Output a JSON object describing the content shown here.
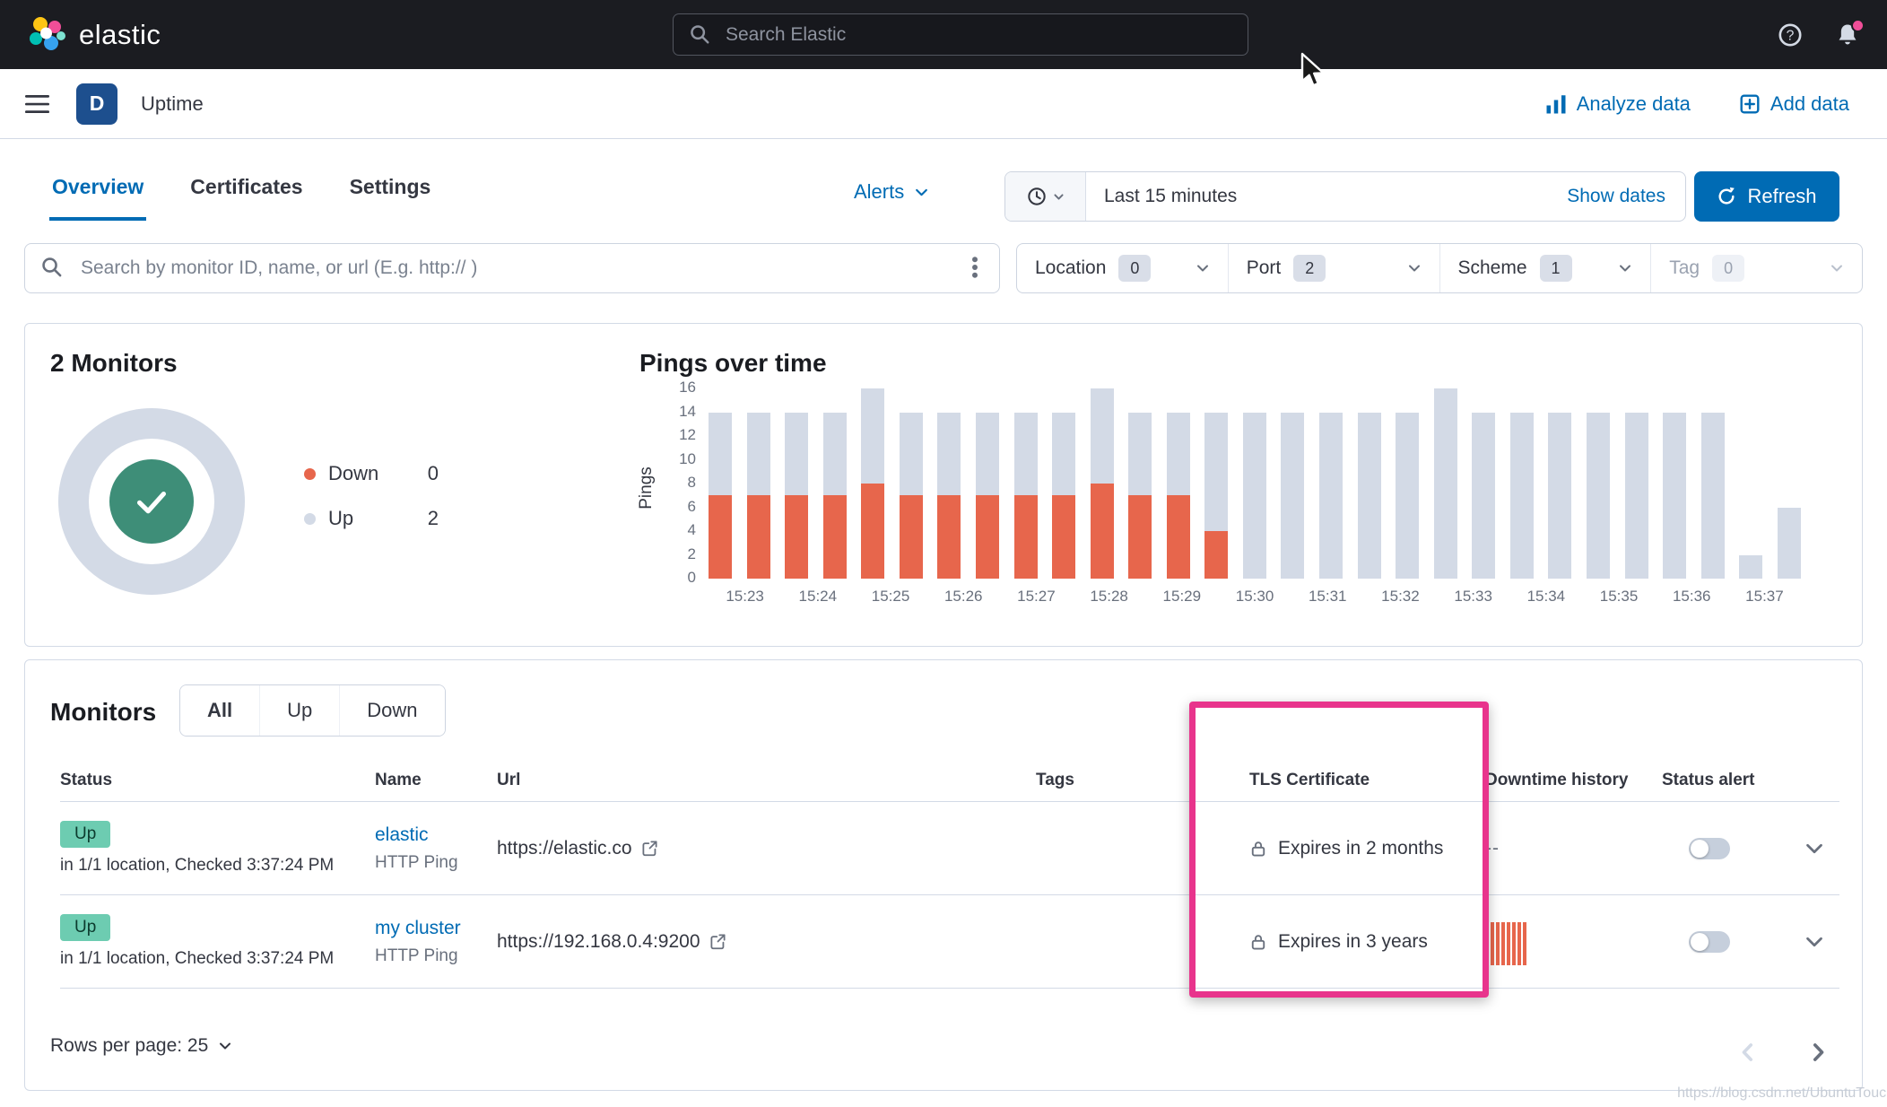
{
  "colors": {
    "accent_blue": "#006bb4",
    "header_bg": "#1b1c21",
    "border_gray": "#d3dae6",
    "text": "#343741",
    "text_subdued": "#69707d",
    "success_badge_bg": "#6dccb1",
    "down_orange": "#e7664c",
    "up_gray": "#d3dae6",
    "donut_check_green": "#3e8e78",
    "annotation_pink": "#e8348c",
    "notification_pink": "#f04e98",
    "space_badge_bg": "#1d4f8e"
  },
  "topbar": {
    "brand": "elastic",
    "search_placeholder": "Search Elastic"
  },
  "header": {
    "space_badge": "D",
    "breadcrumb": "Uptime",
    "analyze_data_label": "Analyze data",
    "add_data_label": "Add data"
  },
  "tabs": [
    {
      "label": "Overview",
      "active": true
    },
    {
      "label": "Certificates",
      "active": false
    },
    {
      "label": "Settings",
      "active": false
    }
  ],
  "alerts_label": "Alerts",
  "timepicker": {
    "range_label": "Last 15 minutes",
    "show_dates_label": "Show dates",
    "refresh_label": "Refresh"
  },
  "filter_bar": {
    "search_placeholder": "Search by monitor ID, name, or url (E.g. http:// )",
    "facets": [
      {
        "label": "Location",
        "count": "0",
        "disabled": false
      },
      {
        "label": "Port",
        "count": "2",
        "disabled": false
      },
      {
        "label": "Scheme",
        "count": "1",
        "disabled": false
      },
      {
        "label": "Tag",
        "count": "0",
        "disabled": true
      }
    ]
  },
  "snapshot": {
    "title": "2 Monitors",
    "legend": [
      {
        "label": "Down",
        "value": "0",
        "color": "#e7664c"
      },
      {
        "label": "Up",
        "value": "2",
        "color": "#d3dae6"
      }
    ]
  },
  "chart_data": {
    "type": "bar",
    "stacked": true,
    "title": "Pings over time",
    "ylabel": "Pings",
    "xlabel": "",
    "ylim": [
      0,
      16
    ],
    "yticks": [
      0,
      2,
      4,
      6,
      8,
      10,
      12,
      14,
      16
    ],
    "grid": false,
    "legend_position": "none",
    "x_labels": [
      "15:23",
      "15:24",
      "15:25",
      "15:26",
      "15:27",
      "15:28",
      "15:29",
      "15:30",
      "15:31",
      "15:32",
      "15:33",
      "15:34",
      "15:35",
      "15:36",
      "15:37"
    ],
    "series": [
      {
        "name": "Down",
        "color": "#e7664c",
        "values": [
          7,
          7,
          7,
          7,
          8,
          7,
          7,
          7,
          7,
          7,
          8,
          7,
          7,
          4,
          0,
          0,
          0,
          0,
          0,
          0,
          0,
          0,
          0,
          0,
          0,
          0,
          0,
          0,
          0
        ]
      },
      {
        "name": "Up",
        "color": "#d3dae6",
        "values": [
          7,
          7,
          7,
          7,
          8,
          7,
          7,
          7,
          7,
          7,
          8,
          7,
          7,
          10,
          14,
          14,
          14,
          14,
          14,
          16,
          14,
          14,
          14,
          14,
          14,
          14,
          14,
          2,
          6
        ]
      }
    ]
  },
  "monitors": {
    "title": "Monitors",
    "status_filters": [
      {
        "label": "All",
        "active": true
      },
      {
        "label": "Up",
        "active": false
      },
      {
        "label": "Down",
        "active": false
      }
    ],
    "columns": [
      "Status",
      "Name",
      "Url",
      "Tags",
      "TLS Certificate",
      "Downtime history",
      "Status alert",
      ""
    ],
    "rows": [
      {
        "status": "Up",
        "status_detail": "in 1/1 location, Checked 3:37:24 PM",
        "name": "elastic",
        "monitor_type": "HTTP Ping",
        "url": "https://elastic.co",
        "tags": "",
        "tls": "Expires in 2 months",
        "downtime_text": "--",
        "downtime_bars": [],
        "alert_enabled": false
      },
      {
        "status": "Up",
        "status_detail": "in 1/1 location, Checked 3:37:24 PM",
        "name": "my cluster",
        "monitor_type": "HTTP Ping",
        "url": "https://192.168.0.4:9200",
        "tags": "",
        "tls": "Expires in 3 years",
        "downtime_text": "",
        "downtime_bars": [
          48,
          48,
          48,
          48,
          48,
          48,
          48,
          48
        ],
        "alert_enabled": false
      }
    ],
    "rows_per_page_label": "Rows per page: 25"
  },
  "watermark": "https://blog.csdn.net/UbuntuTouch"
}
